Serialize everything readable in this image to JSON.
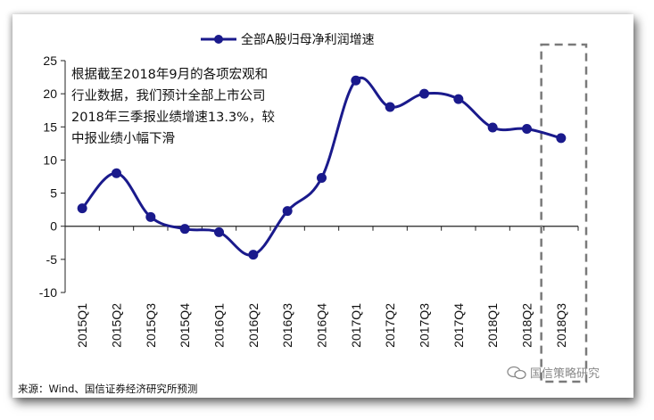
{
  "chart_data": {
    "type": "line",
    "series": [
      {
        "name": "全部A股归母净利润增速",
        "color": "#1a1a8c",
        "values": [
          2.7,
          8.0,
          1.4,
          -0.4,
          -0.9,
          -4.3,
          2.3,
          7.3,
          22.0,
          18.0,
          20.0,
          19.2,
          14.9,
          14.7,
          13.3
        ]
      }
    ],
    "categories": [
      "2015Q1",
      "2015Q2",
      "2015Q3",
      "2015Q4",
      "2016Q1",
      "2016Q2",
      "2016Q3",
      "2016Q4",
      "2017Q1",
      "2017Q2",
      "2017Q3",
      "2017Q4",
      "2018Q1",
      "2018Q2",
      "2018Q3"
    ],
    "yticks": [
      "25",
      "20",
      "15",
      "10",
      "5",
      "0",
      "-5",
      "-10"
    ],
    "ylim": [
      -10,
      25
    ],
    "legend": "top-center",
    "grid": false,
    "highlight": "2018Q3"
  },
  "annotation": {
    "line1": "根据截至2018年9月的各项宏观和",
    "line2": "行业数据，我们预计全部上市公司",
    "line3": "2018年三季报业绩增速13.3%，较",
    "line4": "中报业绩小幅下滑"
  },
  "source": "来源：Wind、国信证券经济研究所预测",
  "watermark": "国信策略研究"
}
